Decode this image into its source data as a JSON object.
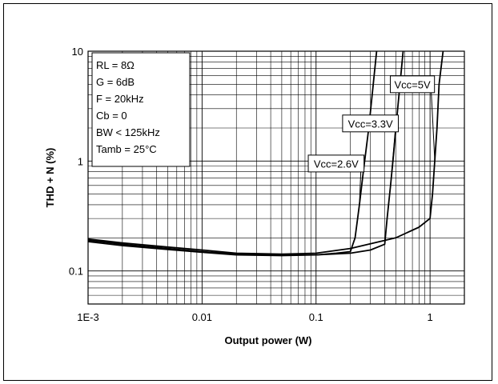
{
  "chart_data": {
    "type": "line",
    "title": "",
    "xlabel": "Output power (W)",
    "ylabel": "THD + N (%)",
    "x_scale": "log",
    "y_scale": "log",
    "xlim": [
      0.001,
      2
    ],
    "ylim": [
      0.05,
      10
    ],
    "x_ticks": [
      {
        "value": 0.001,
        "label": "1E-3"
      },
      {
        "value": 0.01,
        "label": "0.01"
      },
      {
        "value": 0.1,
        "label": "0.1"
      },
      {
        "value": 1,
        "label": "1"
      }
    ],
    "y_ticks": [
      {
        "value": 0.1,
        "label": "0.1"
      },
      {
        "value": 1,
        "label": "1"
      },
      {
        "value": 10,
        "label": "10"
      }
    ],
    "grid": true,
    "conditions": [
      "RL = 8Ω",
      "G = 6dB",
      "F = 20kHz",
      "Cb = 0",
      "BW < 125kHz",
      "Tamb = 25°C"
    ],
    "series": [
      {
        "name": "Vcc=5V",
        "x": [
          0.001,
          0.002,
          0.005,
          0.01,
          0.02,
          0.05,
          0.1,
          0.2,
          0.5,
          0.8,
          1.0,
          1.05,
          1.1,
          1.15,
          1.2,
          1.3
        ],
        "y": [
          0.195,
          0.18,
          0.165,
          0.155,
          0.145,
          0.142,
          0.145,
          0.16,
          0.2,
          0.25,
          0.3,
          0.5,
          1.0,
          2.0,
          5.0,
          10
        ]
      },
      {
        "name": "Vcc=3.3V",
        "x": [
          0.001,
          0.002,
          0.005,
          0.01,
          0.02,
          0.05,
          0.1,
          0.2,
          0.3,
          0.4,
          0.42,
          0.45,
          0.48,
          0.52,
          0.58
        ],
        "y": [
          0.19,
          0.175,
          0.16,
          0.15,
          0.142,
          0.14,
          0.14,
          0.145,
          0.155,
          0.175,
          0.3,
          0.6,
          1.2,
          3.0,
          10
        ]
      },
      {
        "name": "Vcc=2.6V",
        "x": [
          0.001,
          0.002,
          0.005,
          0.01,
          0.02,
          0.05,
          0.1,
          0.15,
          0.2,
          0.22,
          0.24,
          0.26,
          0.29,
          0.34
        ],
        "y": [
          0.185,
          0.17,
          0.157,
          0.148,
          0.14,
          0.138,
          0.14,
          0.145,
          0.15,
          0.2,
          0.4,
          0.8,
          2.0,
          10
        ]
      }
    ],
    "labels": [
      {
        "text": "Vcc=5V",
        "series": "Vcc=5V",
        "at": [
          0.7,
          5.0
        ]
      },
      {
        "text": "Vcc=3.3V",
        "series": "Vcc=3.3V",
        "at": [
          0.3,
          2.2
        ]
      },
      {
        "text": "Vcc=2.6V",
        "series": "Vcc=2.6V",
        "at": [
          0.15,
          0.95
        ]
      }
    ]
  }
}
